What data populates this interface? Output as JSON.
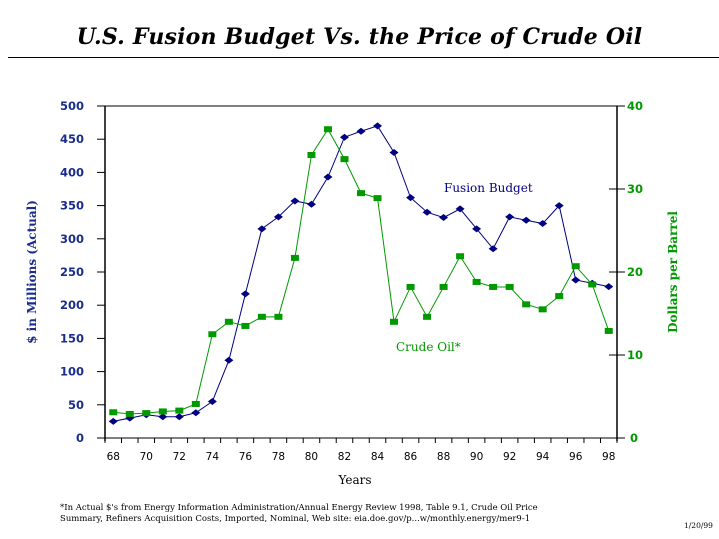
{
  "page": {
    "title": "U.S. Fusion Budget Vs. the Price of Crude Oil",
    "footnote_line1": "*In Actual $'s from Energy Information Administration/Annual Energy Review 1998, Table 9.1, Crude Oil Price",
    "footnote_line2": "Summary, Refiners Acquisition Costs, Imported, Nominal, Web site: eia.doe.gov/p...w/monthly.energy/mer9-1",
    "date": "1/20/99"
  },
  "chart_data": {
    "type": "line",
    "title": "U.S. Fusion Budget Vs. the Price of Crude Oil",
    "xlabel": "Years",
    "ylabel": "$ in Millions (Actual)",
    "y2label": "Dollars per Barrel",
    "ylim": [
      0,
      500
    ],
    "y2lim": [
      0,
      40
    ],
    "yticks": [
      "0",
      "50",
      "100",
      "150",
      "200",
      "250",
      "300",
      "350",
      "400",
      "450",
      "500"
    ],
    "y2ticks": [
      "0",
      "10",
      "20",
      "30",
      "40"
    ],
    "x": [
      68,
      69,
      70,
      71,
      72,
      73,
      74,
      75,
      76,
      77,
      78,
      79,
      80,
      81,
      82,
      83,
      84,
      85,
      86,
      87,
      88,
      89,
      90,
      91,
      92,
      93,
      94,
      95,
      96,
      97,
      98
    ],
    "xticklabels": [
      "68",
      "70",
      "72",
      "74",
      "76",
      "78",
      "80",
      "82",
      "84",
      "86",
      "88",
      "90",
      "92",
      "94",
      "96",
      "98"
    ],
    "grid": false,
    "series": [
      {
        "name": "Fusion Budget",
        "axis": "left",
        "color": "#000080",
        "marker": "diamond",
        "values": [
          25,
          30,
          35,
          32,
          32,
          38,
          55,
          117,
          217,
          315,
          333,
          357,
          352,
          393,
          453,
          462,
          470,
          430,
          362,
          340,
          332,
          345,
          315,
          285,
          333,
          328,
          323,
          350,
          238,
          233,
          228
        ]
      },
      {
        "name": "Crude Oil*",
        "axis": "right",
        "color": "#009900",
        "marker": "square",
        "values": [
          3.1,
          2.9,
          3.0,
          3.2,
          3.3,
          4.1,
          12.5,
          14.0,
          13.5,
          14.6,
          14.6,
          21.7,
          34.1,
          37.2,
          33.6,
          29.5,
          28.9,
          14.0,
          18.2,
          14.6,
          18.2,
          21.9,
          18.8,
          18.2,
          18.2,
          16.1,
          15.5,
          17.1,
          20.7,
          18.5,
          12.9
        ]
      }
    ],
    "annotations": [
      {
        "text": "Fusion Budget",
        "series": "Fusion Budget",
        "color": "#000080"
      },
      {
        "text": "Crude Oil*",
        "series": "Crude Oil*",
        "color": "#009900"
      }
    ],
    "colors": {
      "left_axis_text": "#1a2d8c",
      "right_axis_text": "#009900",
      "axis_line": "#000000"
    }
  }
}
